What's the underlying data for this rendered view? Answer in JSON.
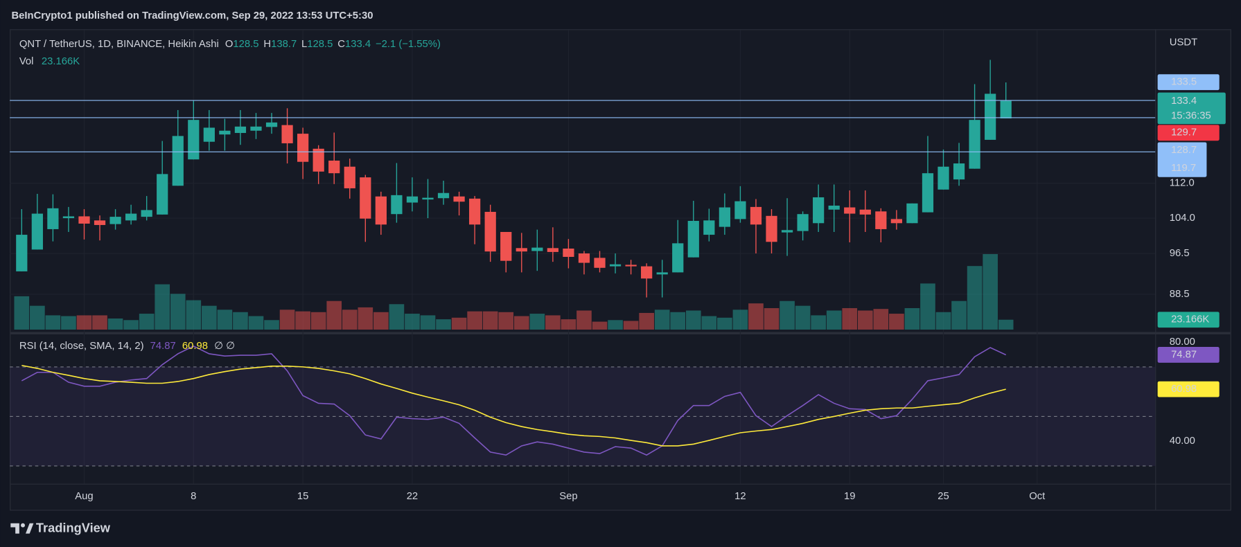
{
  "header": {
    "published": "BeInCrypto1 published on TradingView.com, Sep 29, 2022 13:53 UTC+5:30"
  },
  "footer": {
    "brand": "TradingView"
  },
  "chart_data": [
    {
      "type": "candlestick",
      "title": "QNT / TetherUS, 1D, BINANCE, Heikin Ashi",
      "y_axis_label": "USDT",
      "ohlc_letters": [
        "O",
        "H",
        "L",
        "C"
      ],
      "change": "−2.1 (−1.55%)",
      "countdown": "15:36:35",
      "open": [
        92.9,
        97.3,
        101.6,
        104.0,
        104.4,
        103.5,
        102.7,
        103.5,
        104.3,
        104.8,
        111.4,
        117.8,
        122.3,
        124.2,
        124.6,
        125.2,
        126.2,
        126.7,
        124.4,
        120.5,
        117.5,
        116.0,
        113.4,
        108.9,
        104.9,
        107.5,
        108.2,
        108.5,
        108.9,
        108.4,
        105.4,
        101.0,
        97.6,
        97.0,
        97.6,
        97.5,
        96.5,
        95.6,
        93.9,
        94.2,
        93.9,
        92.3,
        92.7,
        95.7,
        100.4,
        102.1,
        103.8,
        106.5,
        104.5,
        100.9,
        101.2,
        102.9,
        105.9,
        106.4,
        105.9,
        105.5,
        103.8,
        102.9,
        105.3,
        110.5,
        112.9,
        115.5,
        122.8,
        128.5
      ],
      "high": [
        106.0,
        109.5,
        109.4,
        106.5,
        106.0,
        104.6,
        106.0,
        107.0,
        109.0,
        122.5,
        130.8,
        133.5,
        130.8,
        128.4,
        130.8,
        130.0,
        130.0,
        131.3,
        126.0,
        121.4,
        124.7,
        118.0,
        114.0,
        110.0,
        116.9,
        113.4,
        113.0,
        112.6,
        110.0,
        109.0,
        107.0,
        101.0,
        100.8,
        101.5,
        102.0,
        99.5,
        97.0,
        97.0,
        96.5,
        95.2,
        94.5,
        95.2,
        103.6,
        107.9,
        106.1,
        109.6,
        111.3,
        108.3,
        106.0,
        108.5,
        105.5,
        111.7,
        111.7,
        110.3,
        110.3,
        106.2,
        105.8,
        107.3,
        123.8,
        120.3,
        122.0,
        138.2,
        145.5,
        138.7
      ],
      "low": [
        92.9,
        97.3,
        99.0,
        101.0,
        99.4,
        99.2,
        101.5,
        102.6,
        103.5,
        104.8,
        111.4,
        117.8,
        120.0,
        120.0,
        121.5,
        123.0,
        124.4,
        116.8,
        113.0,
        111.8,
        111.8,
        108.4,
        98.9,
        100.4,
        103.0,
        105.5,
        104.0,
        107.0,
        104.6,
        98.4,
        94.8,
        92.7,
        92.7,
        93.0,
        94.8,
        93.5,
        92.3,
        92.7,
        92.5,
        92.3,
        87.9,
        87.9,
        92.7,
        95.7,
        99.0,
        100.4,
        103.0,
        96.5,
        96.5,
        96.0,
        99.2,
        101.0,
        101.0,
        98.8,
        101.0,
        98.8,
        101.5,
        102.9,
        105.3,
        110.5,
        111.4,
        115.5,
        122.8,
        128.5
      ],
      "close": [
        100.4,
        105.0,
        106.2,
        104.4,
        102.8,
        102.5,
        104.3,
        105.0,
        105.8,
        114.2,
        123.8,
        128.1,
        126.0,
        125.2,
        126.3,
        126.3,
        127.4,
        121.9,
        117.2,
        114.8,
        114.4,
        110.8,
        103.9,
        102.6,
        109.2,
        108.9,
        108.6,
        109.7,
        107.7,
        102.6,
        96.9,
        95.0,
        96.9,
        97.7,
        96.8,
        95.8,
        94.6,
        93.6,
        94.3,
        93.9,
        91.5,
        92.7,
        98.6,
        103.4,
        103.5,
        106.4,
        107.8,
        102.6,
        98.9,
        101.4,
        104.9,
        108.7,
        106.8,
        105.0,
        104.8,
        101.6,
        102.9,
        107.3,
        114.4,
        116.0,
        116.8,
        128.1,
        135.4,
        133.4
      ],
      "up_color": "#26a69a",
      "down_color": "#ef5350",
      "log": true,
      "ylim": [
        82.1,
        155.0
      ],
      "yticks": [
        88.5,
        96.5,
        {
          "value": 104.0,
          "label": "104.0"
        },
        {
          "value": 112.0,
          "label": "112.0"
        }
      ],
      "xlim": [
        -0.76,
        72.56
      ],
      "xticks": [
        {
          "value": 4,
          "label": "Aug"
        },
        {
          "value": 11,
          "label": "8"
        },
        {
          "value": 18,
          "label": "15"
        },
        {
          "value": 25,
          "label": "22"
        },
        {
          "value": 35,
          "label": "Sep"
        },
        {
          "value": 46,
          "label": "12"
        },
        {
          "value": 53,
          "label": "19"
        },
        {
          "value": 59,
          "label": "25"
        },
        {
          "value": 65,
          "label": "Oct"
        }
      ],
      "grid": true,
      "hlines": [
        133.5,
        128.7,
        119.7
      ],
      "hline_color": "#90bff9",
      "alert_price": 129.7,
      "alert_color": "#f23645"
    },
    {
      "type": "bar",
      "title": "Vol",
      "values": [
        78000,
        55700,
        33400,
        31600,
        33400,
        33400,
        26000,
        22300,
        37200,
        105900,
        83600,
        68700,
        55700,
        46500,
        40900,
        31600,
        22300,
        46500,
        42700,
        40900,
        66900,
        46500,
        52000,
        40900,
        59500,
        37200,
        33400,
        24200,
        27900,
        42700,
        42700,
        40900,
        31600,
        37200,
        33400,
        24200,
        44600,
        18600,
        22300,
        20400,
        39000,
        46500,
        40900,
        44600,
        31600,
        27900,
        46500,
        61300,
        50200,
        66900,
        55700,
        33400,
        44600,
        50200,
        44600,
        48300,
        37200,
        50200,
        107800,
        40900,
        66900,
        148600,
        176500,
        23166
      ],
      "value_labels": [
        null,
        null,
        null,
        null,
        null,
        null,
        null,
        null,
        null,
        null,
        null,
        null,
        null,
        null,
        null,
        null,
        null,
        null,
        null,
        null,
        null,
        null,
        null,
        null,
        null,
        null,
        null,
        null,
        null,
        null,
        null,
        null,
        null,
        null,
        null,
        null,
        null,
        null,
        null,
        null,
        null,
        null,
        null,
        null,
        null,
        null,
        null,
        null,
        null,
        null,
        null,
        null,
        null,
        null,
        null,
        null,
        null,
        null,
        null,
        null,
        null,
        null,
        null,
        "23.166K"
      ],
      "up_color": "rgba(38,166,154,0.5)",
      "down_color": "rgba(239,83,80,0.5)",
      "label_color": "#22ab94",
      "ylim": [
        0,
        210000
      ]
    },
    {
      "type": "line",
      "title": "RSI (14, close, SMA, 14, 2)",
      "extra_labels": "∅ ∅",
      "series": [
        {
          "color": "#7e57c2",
          "values": [
            64.4,
            67.8,
            67.8,
            63.8,
            62.2,
            62.2,
            63.8,
            64.7,
            65.3,
            70.9,
            75.3,
            78.4,
            75.3,
            74.4,
            74.7,
            74.7,
            75.3,
            68.4,
            58.4,
            55.3,
            55.0,
            50.3,
            42.5,
            40.9,
            49.7,
            49.1,
            48.8,
            49.7,
            47.2,
            41.3,
            35.6,
            34.4,
            38.1,
            39.7,
            38.8,
            37.2,
            35.6,
            35.0,
            37.8,
            37.2,
            34.4,
            38.1,
            48.4,
            54.4,
            54.4,
            58.1,
            59.7,
            50.3,
            45.9,
            50.3,
            54.4,
            58.8,
            55.3,
            53.1,
            52.8,
            49.1,
            50.3,
            56.9,
            64.4,
            65.6,
            66.9,
            74.1,
            77.8,
            74.87
          ]
        },
        {
          "color": "#ffeb3b",
          "values": [
            70.6,
            69.4,
            67.8,
            66.6,
            65.3,
            64.4,
            64.1,
            63.8,
            63.4,
            63.4,
            64.1,
            65.3,
            66.9,
            68.1,
            69.1,
            69.7,
            70.3,
            70.3,
            70.0,
            69.4,
            68.4,
            67.2,
            65.3,
            63.1,
            61.3,
            59.4,
            57.8,
            56.3,
            54.7,
            52.5,
            49.7,
            47.5,
            45.9,
            44.7,
            43.8,
            42.8,
            42.2,
            41.9,
            41.3,
            40.3,
            39.4,
            38.1,
            38.1,
            38.8,
            40.3,
            41.9,
            43.4,
            44.1,
            44.7,
            45.9,
            47.2,
            48.8,
            50.0,
            51.3,
            52.5,
            53.1,
            53.4,
            53.4,
            54.1,
            54.7,
            55.3,
            57.5,
            59.4,
            60.98
          ]
        }
      ],
      "ylim": [
        22.8,
        82.5
      ],
      "yticks": [
        {
          "value": 80,
          "label": "80.00"
        },
        {
          "value": 40,
          "label": "40.00"
        }
      ],
      "levels": [
        70,
        50,
        30
      ],
      "band_color": "rgba(126,87,194,0.10)"
    }
  ]
}
